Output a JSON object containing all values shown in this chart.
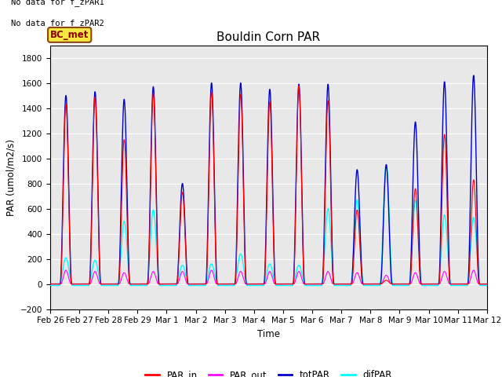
{
  "title": "Bouldin Corn PAR",
  "ylabel": "PAR (umol/m2/s)",
  "xlabel": "Time",
  "xlabels": [
    "Feb 26",
    "Feb 27",
    "Feb 28",
    "Feb 29",
    "Mar 1",
    "Mar 2",
    "Mar 3",
    "Mar 4",
    "Mar 5",
    "Mar 6",
    "Mar 7",
    "Mar 8",
    "Mar 9",
    "Mar 10",
    "Mar 11",
    "Mar 12"
  ],
  "ylim": [
    -200,
    1900
  ],
  "yticks": [
    -200,
    0,
    200,
    400,
    600,
    800,
    1000,
    1200,
    1400,
    1600,
    1800
  ],
  "bg_color": "#e8e8e8",
  "text_nodata1": "No data for f_zPAR1",
  "text_nodata2": "No data for f_zPAR2",
  "legend_label": "BC_met",
  "line_colors": {
    "PAR_in": "#ff0000",
    "PAR_out": "#ff00ff",
    "totPAR": "#0000cc",
    "difPAR": "#00ffff"
  },
  "num_days": 15,
  "day_peaks_totPAR": [
    1500,
    1530,
    1470,
    1570,
    800,
    1600,
    1600,
    1550,
    1590,
    1590,
    910,
    950,
    1290,
    1610,
    1660
  ],
  "day_peaks_PARin": [
    1430,
    1490,
    1150,
    1520,
    730,
    1530,
    1510,
    1450,
    1580,
    1460,
    590,
    30,
    760,
    1190,
    830
  ],
  "day_peaks_PARout": [
    110,
    100,
    90,
    100,
    100,
    110,
    100,
    100,
    100,
    100,
    90,
    70,
    90,
    100,
    110
  ],
  "day_peaks_difPAR": [
    210,
    190,
    500,
    590,
    150,
    160,
    240,
    160,
    150,
    600,
    670,
    950,
    670,
    550,
    530
  ],
  "figsize": [
    6.4,
    4.8
  ],
  "dpi": 100
}
